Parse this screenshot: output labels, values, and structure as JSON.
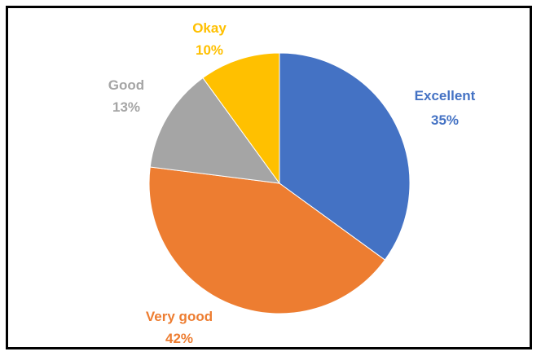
{
  "chart_data": {
    "type": "pie",
    "title": "",
    "start_angle_deg": 0,
    "direction": "clockwise",
    "slices": [
      {
        "label": "Excellent",
        "percent_label": "35%",
        "value": 35,
        "color": "#4472C4"
      },
      {
        "label": "Very good",
        "percent_label": "42%",
        "value": 42,
        "color": "#ED7D31"
      },
      {
        "label": "Good",
        "percent_label": "13%",
        "value": 13,
        "color": "#A5A5A5"
      },
      {
        "label": "Okay",
        "percent_label": "10%",
        "value": 10,
        "color": "#FFC000"
      }
    ]
  }
}
